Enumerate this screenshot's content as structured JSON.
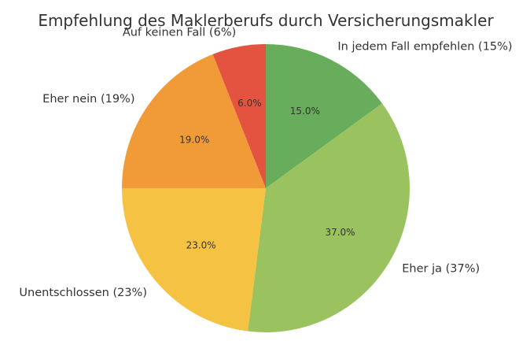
{
  "chart_data": {
    "type": "pie",
    "title": "Empfehlung des Maklerberufs durch Versicherungsmakler",
    "slices": [
      {
        "label": "In jedem Fall empfehlen (15%)",
        "value": 15.0,
        "pct_label": "15.0%",
        "color": "#68ad5b"
      },
      {
        "label": "Eher ja (37%)",
        "value": 37.0,
        "pct_label": "37.0%",
        "color": "#9ac35f"
      },
      {
        "label": "Unentschlossen (23%)",
        "value": 23.0,
        "pct_label": "23.0%",
        "color": "#f6c243"
      },
      {
        "label": "Eher nein (19%)",
        "value": 19.0,
        "pct_label": "19.0%",
        "color": "#f19b38"
      },
      {
        "label": "Auf keinen Fall (6%)",
        "value": 6.0,
        "pct_label": "6.0%",
        "color": "#e45340"
      }
    ],
    "start_angle_deg": 90,
    "direction": "clockwise",
    "legend": "none"
  }
}
